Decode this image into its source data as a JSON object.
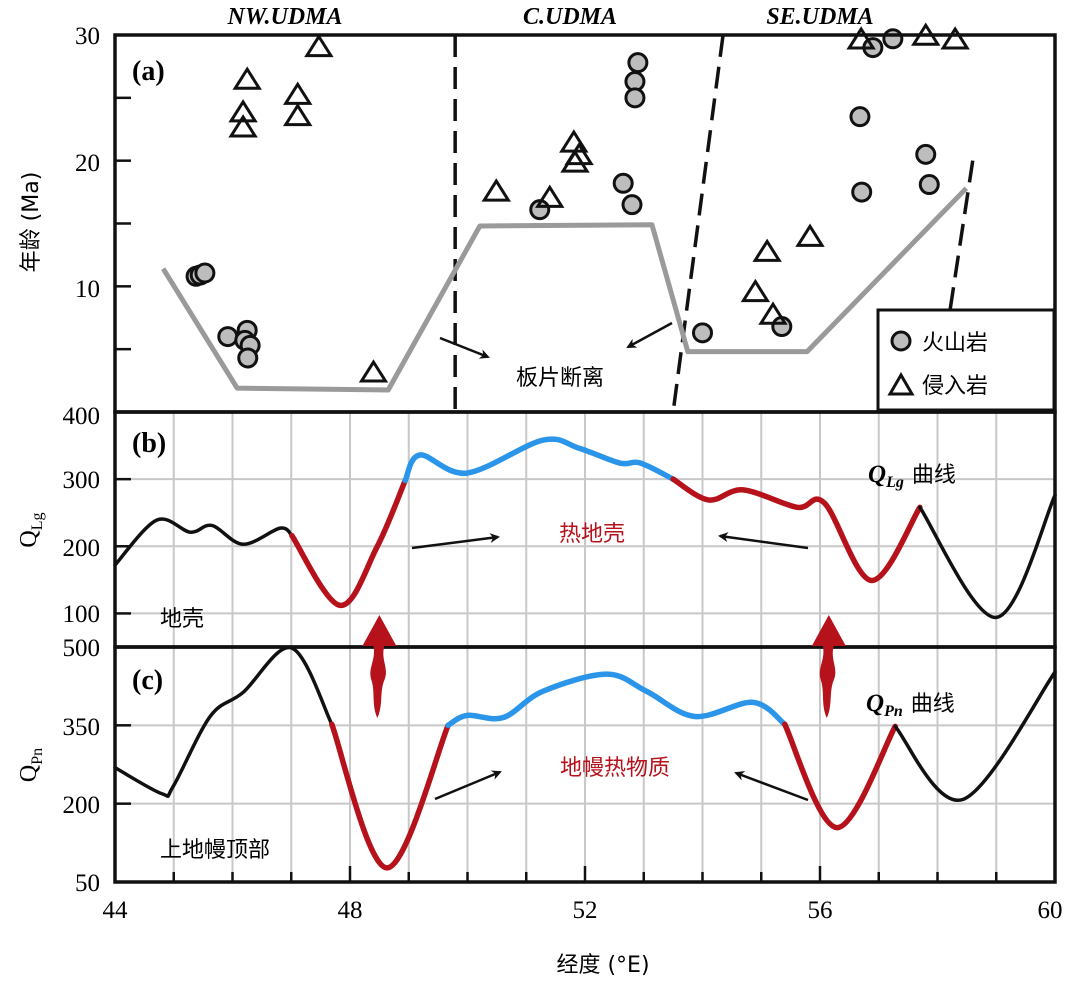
{
  "colors": {
    "hot": "#b5121b",
    "anomaly": "#2b95e9",
    "normal": "#111111",
    "slab": "#9a9a9a",
    "grid": "#c8c8c8",
    "marker_fill": "#bdbdbd"
  },
  "x_axis": {
    "label": "经度 (°E)",
    "ticks": [
      "44",
      "48",
      "52",
      "56",
      "60"
    ],
    "range": [
      44,
      60
    ]
  },
  "chart_data": [
    {
      "type": "scatter",
      "panel_label": "(a)",
      "ylabel": "年龄 (Ma)",
      "ylim": [
        0,
        30
      ],
      "yticks": [
        "30",
        "20",
        "10"
      ],
      "regions": [
        "NW.UDMA",
        "C.UDMA",
        "SE.UDMA"
      ],
      "legend": {
        "placement": "bottom-right",
        "items": [
          {
            "marker": "circle",
            "label": "火山岩"
          },
          {
            "marker": "triangle",
            "label": "侵入岩"
          }
        ]
      },
      "annotation": "板片断离",
      "series": [
        {
          "name": "火山岩",
          "marker": "circle",
          "points": [
            [
              45.38,
              10.8
            ],
            [
              45.45,
              10.9
            ],
            [
              45.53,
              11.06
            ],
            [
              45.92,
              6.0
            ],
            [
              46.25,
              6.5
            ],
            [
              46.21,
              5.7
            ],
            [
              46.3,
              5.3
            ],
            [
              46.26,
              4.3
            ],
            [
              51.23,
              16.1
            ],
            [
              52.9,
              27.8
            ],
            [
              52.85,
              26.3
            ],
            [
              52.85,
              25.0
            ],
            [
              52.65,
              18.2
            ],
            [
              52.8,
              16.5
            ],
            [
              54.0,
              6.3
            ],
            [
              55.35,
              6.8
            ],
            [
              56.68,
              23.5
            ],
            [
              56.71,
              17.5
            ],
            [
              57.8,
              20.5
            ],
            [
              57.86,
              18.1
            ],
            [
              56.9,
              29.0
            ],
            [
              57.24,
              29.7
            ]
          ]
        },
        {
          "name": "侵入岩",
          "marker": "triangle",
          "points": [
            [
              46.25,
              26.4
            ],
            [
              46.18,
              23.8
            ],
            [
              46.18,
              22.6
            ],
            [
              47.11,
              25.2
            ],
            [
              47.11,
              23.5
            ],
            [
              47.47,
              29.0
            ],
            [
              48.4,
              3.1
            ],
            [
              50.49,
              17.5
            ],
            [
              51.4,
              17.0
            ],
            [
              51.81,
              21.4
            ],
            [
              51.9,
              20.4
            ],
            [
              51.83,
              19.8
            ],
            [
              55.1,
              12.7
            ],
            [
              55.83,
              13.9
            ],
            [
              54.9,
              9.5
            ],
            [
              55.2,
              7.7
            ],
            [
              56.7,
              29.6
            ],
            [
              57.8,
              30.0
            ],
            [
              58.3,
              29.6
            ]
          ]
        }
      ],
      "trend_line": [
        [
          44.82,
          11.4
        ],
        [
          46.08,
          1.9
        ],
        [
          48.65,
          1.75
        ],
        [
          50.21,
          14.8
        ],
        [
          53.14,
          14.9
        ],
        [
          53.75,
          4.8
        ],
        [
          55.78,
          4.8
        ],
        [
          58.49,
          17.8
        ]
      ],
      "boundaries": [
        [
          [
            49.79,
            30
          ],
          [
            49.79,
            0
          ]
        ],
        [
          [
            54.35,
            30
          ],
          [
            53.5,
            0
          ]
        ],
        [
          [
            58.6,
            20
          ],
          [
            57.95,
            0
          ]
        ]
      ]
    },
    {
      "type": "line",
      "panel_label": "(b)",
      "ylabel": "QLg",
      "ylabel_main": "Q",
      "ylabel_sub": "Lg",
      "ylim": [
        50,
        400
      ],
      "yticks": [
        "400",
        "300",
        "200",
        "100"
      ],
      "curve_label_main": "Q",
      "curve_label_sub": "Lg",
      "curve_label_suffix": "曲线",
      "hot_label": "热地壳",
      "layer_label": "地壳",
      "segments": [
        {
          "class": "normal",
          "points": [
            [
              44.0,
              172
            ],
            [
              44.71,
              239
            ],
            [
              45.28,
              221
            ],
            [
              45.65,
              231
            ],
            [
              46.18,
              203
            ],
            [
              46.81,
              227
            ],
            [
              47.01,
              216
            ]
          ]
        },
        {
          "class": "hot",
          "points": [
            [
              47.01,
              216
            ],
            [
              47.83,
              112
            ],
            [
              48.46,
              199
            ],
            [
              48.94,
              298
            ]
          ]
        },
        {
          "class": "anomaly",
          "points": [
            [
              48.94,
              298
            ],
            [
              49.19,
              336
            ],
            [
              49.99,
              309
            ],
            [
              51.28,
              358
            ],
            [
              51.9,
              346
            ],
            [
              52.59,
              324
            ],
            [
              52.94,
              324
            ],
            [
              53.5,
              300
            ]
          ]
        },
        {
          "class": "hot",
          "points": [
            [
              53.5,
              300
            ],
            [
              54.1,
              269
            ],
            [
              54.69,
              284
            ],
            [
              55.61,
              258
            ],
            [
              56.08,
              264
            ],
            [
              56.88,
              149
            ],
            [
              57.7,
              258
            ]
          ]
        },
        {
          "class": "normal",
          "points": [
            [
              57.7,
              258
            ],
            [
              59.0,
              94
            ],
            [
              60.0,
              276
            ]
          ]
        }
      ]
    },
    {
      "type": "line",
      "panel_label": "(c)",
      "ylabel": "QPn",
      "ylabel_main": "Q",
      "ylabel_sub": "Pn",
      "ylim": [
        50,
        500
      ],
      "yticks": [
        "500",
        "350",
        "200",
        "50"
      ],
      "curve_label_main": "Q",
      "curve_label_sub": "Pn",
      "curve_label_suffix": "曲线",
      "hot_label": "地幔热物质",
      "layer_label": "上地幔顶部",
      "segments": [
        {
          "class": "normal",
          "points": [
            [
              44.0,
              269
            ],
            [
              44.8,
              219
            ],
            [
              44.99,
              233
            ],
            [
              45.62,
              367
            ],
            [
              46.18,
              413
            ],
            [
              47.01,
              498
            ],
            [
              47.69,
              352
            ]
          ]
        },
        {
          "class": "hot",
          "points": [
            [
              47.69,
              352
            ],
            [
              48.63,
              77
            ],
            [
              49.67,
              350
            ]
          ]
        },
        {
          "class": "anomaly",
          "points": [
            [
              49.67,
              350
            ],
            [
              49.99,
              369
            ],
            [
              50.61,
              365
            ],
            [
              51.28,
              415
            ],
            [
              52.37,
              448
            ],
            [
              53.05,
              415
            ],
            [
              53.87,
              367
            ],
            [
              54.86,
              394
            ],
            [
              55.4,
              352
            ]
          ]
        },
        {
          "class": "hot",
          "points": [
            [
              55.4,
              352
            ],
            [
              56.29,
              154
            ],
            [
              57.28,
              348
            ]
          ]
        },
        {
          "class": "normal",
          "points": [
            [
              57.28,
              348
            ],
            [
              58.43,
              208
            ],
            [
              60.0,
              452
            ]
          ]
        }
      ]
    }
  ],
  "upwelling_arrows_lon": [
    48.5,
    56.15
  ]
}
